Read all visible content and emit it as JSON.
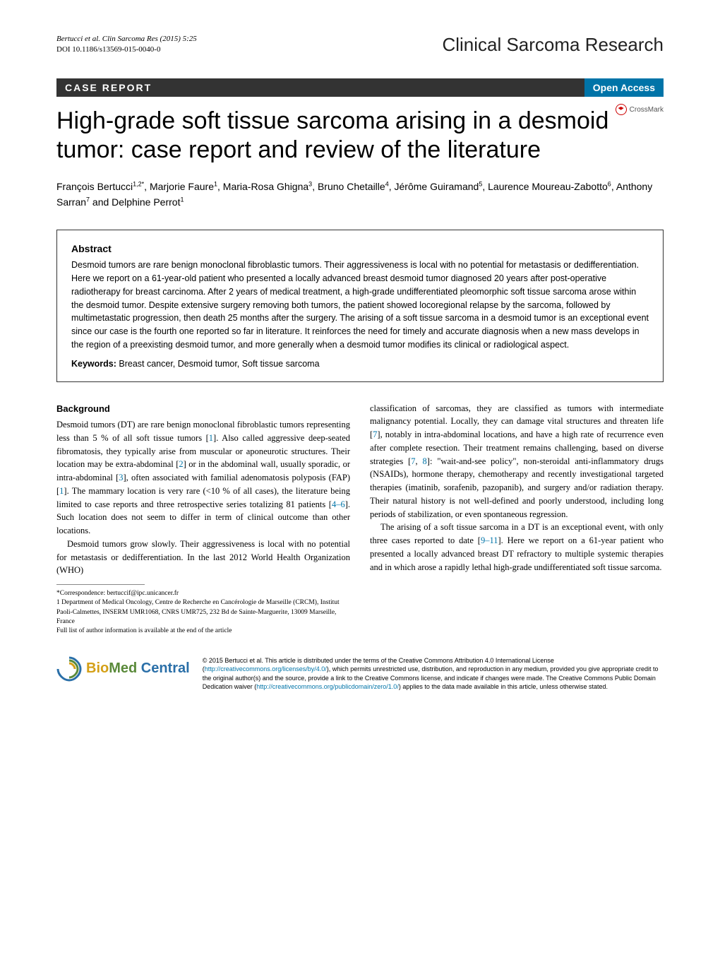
{
  "header": {
    "citation": "Bertucci et al. Clin Sarcoma Res  (2015) 5:25",
    "doi": "DOI 10.1186/s13569-015-0040-0",
    "journal": "Clinical Sarcoma Research"
  },
  "label_bar": {
    "case_report": "CASE REPORT",
    "open_access": "Open Access"
  },
  "crossmark": "CrossMark",
  "title": "High-grade soft tissue sarcoma arising in a desmoid tumor: case report and review of the literature",
  "authors_html": "François Bertucci<sup>1,2*</sup>, Marjorie Faure<sup>1</sup>, Maria-Rosa Ghigna<sup>3</sup>, Bruno Chetaille<sup>4</sup>, Jérôme Guiramand<sup>5</sup>, Laurence Moureau-Zabotto<sup>6</sup>, Anthony Sarran<sup>7</sup> and Delphine Perrot<sup>1</sup>",
  "authors_text": "François Bertucci1,2*, Marjorie Faure1, Maria-Rosa Ghigna3, Bruno Chetaille4, Jérôme Guiramand5, Laurence Moureau-Zabotto6, Anthony Sarran7 and Delphine Perrot1",
  "abstract": {
    "heading": "Abstract",
    "text": "Desmoid tumors are rare benign monoclonal fibroblastic tumors. Their aggressiveness is local with no potential for metastasis or dedifferentiation. Here we report on a 61-year-old patient who presented a locally advanced breast desmoid tumor diagnosed 20 years after post-operative radiotherapy for breast carcinoma. After 2 years of medical treatment, a high-grade undifferentiated pleomorphic soft tissue sarcoma arose within the desmoid tumor. Despite extensive surgery removing both tumors, the patient showed locoregional relapse by the sarcoma, followed by multimetastatic progression, then death 25 months after the surgery. The arising of a soft tissue sarcoma in a desmoid tumor is an exceptional event since our case is the fourth one reported so far in literature. It reinforces the need for timely and accurate diagnosis when a new mass develops in the region of a preexisting desmoid tumor, and more generally when a desmoid tumor modifies its clinical or radiological aspect.",
    "keywords_label": "Keywords:",
    "keywords": "  Breast cancer, Desmoid tumor, Soft tissue sarcoma"
  },
  "left_col": {
    "heading": "Background",
    "p1_a": "Desmoid tumors (DT) are rare benign monoclonal fibroblastic tumors representing less than 5 % of all soft tissue tumors [",
    "p1_r1": "1",
    "p1_b": "]. Also called aggressive deep-seated fibromatosis, they typically arise from muscular or aponeurotic structures. Their location may be extra-abdominal [",
    "p1_r2": "2",
    "p1_c": "] or in the abdominal wall, usually sporadic, or intra-abdominal [",
    "p1_r3": "3",
    "p1_d": "], often associated with familial adenomatosis polyposis (FAP) [",
    "p1_r4": "1",
    "p1_e": "]. The mammary location is very rare (<10 % of all cases), the literature being limited to case reports and three retrospective series totalizing 81 patients [",
    "p1_r5": "4–6",
    "p1_f": "]. Such location does not seem to differ in term of clinical outcome than other locations.",
    "p2_a": "Desmoid tumors grow slowly. Their aggressiveness is local with no potential for metastasis or dedifferentiation. In the last 2012 World Health Organization (WHO)",
    "corr1": "*Correspondence:  bertuccif@ipc.unicancer.fr",
    "corr2": "1 Department of Medical Oncology, Centre de Recherche en Cancérologie de Marseille (CRCM), Institut Paoli-Calmettes, INSERM UMR1068, CNRS UMR725, 232 Bd de Sainte-Marguerite, 13009 Marseille, France",
    "corr3": "Full list of author information is available at the end of the article"
  },
  "right_col": {
    "p1_a": "classification of sarcomas, they are classified as tumors with intermediate malignancy potential. Locally, they can damage vital structures and threaten life [",
    "p1_r1": "7",
    "p1_b": "], notably in intra-abdominal locations, and have a high rate of recurrence even after complete resection. Their treatment remains challenging, based on diverse strategies [",
    "p1_r2": "7",
    "p1_c": ", ",
    "p1_r3": "8",
    "p1_d": "]: \"wait-and-see policy\", non-steroidal anti-inflammatory drugs (NSAIDs), hormone therapy, chemotherapy and recently investigational targeted therapies (imatinib, sorafenib, pazopanib), and surgery and/or radiation therapy. Their natural history is not well-defined and poorly understood, including long periods of stabilization, or even spontaneous regression.",
    "p2_a": "The arising of a soft tissue sarcoma in a DT is an exceptional event, with only three cases reported to date [",
    "p2_r1": "9–11",
    "p2_b": "]. Here we report on a 61-year patient who presented a locally advanced breast DT refractory to multiple systemic therapies and in which arose a rapidly lethal high-grade undifferentiated soft tissue sarcoma."
  },
  "footer": {
    "logo_bio": "Bio",
    "logo_med": "Med",
    "logo_central": " Central",
    "copyright_a": "© 2015 Bertucci et al. This article is distributed under the terms of the Creative Commons Attribution 4.0 International License (",
    "copyright_link1": "http://creativecommons.org/licenses/by/4.0/",
    "copyright_b": "), which permits unrestricted use, distribution, and reproduction in any medium, provided you give appropriate credit to the original author(s) and the source, provide a link to the Creative Commons license, and indicate if changes were made. The Creative Commons Public Domain Dedication waiver (",
    "copyright_link2": "http://creativecommons.org/publicdomain/zero/1.0/",
    "copyright_c": ") applies to the data made available in this article, unless otherwise stated."
  },
  "colors": {
    "bar_bg": "#333333",
    "open_access_bg": "#0074a8",
    "link": "#0074a8"
  }
}
